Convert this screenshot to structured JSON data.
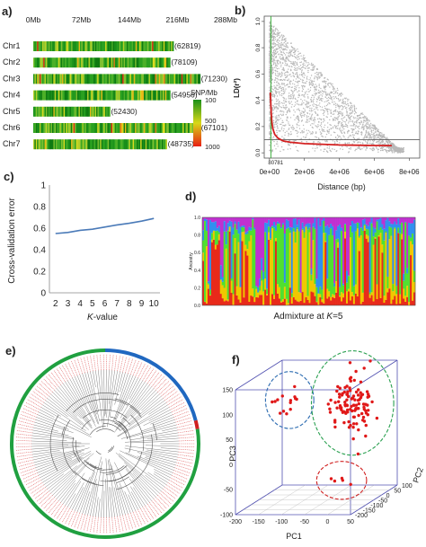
{
  "chart_data": [
    {
      "panel": "a)",
      "type": "heatmap",
      "xticks": [
        "0Mb",
        "72Mb",
        "144Mb",
        "216Mb",
        "288Mb"
      ],
      "xlim": [
        0,
        288
      ],
      "rows": [
        {
          "name": "Chr1",
          "count": "(62819)",
          "length": 210
        },
        {
          "name": "Chr2",
          "count": "(78109)",
          "length": 205
        },
        {
          "name": "Chr3",
          "count": "(71230)",
          "length": 250
        },
        {
          "name": "Chr4",
          "count": "(54956)",
          "length": 205
        },
        {
          "name": "Chr5",
          "count": "(52430)",
          "length": 115
        },
        {
          "name": "Chr6",
          "count": "(67101)",
          "length": 250
        },
        {
          "name": "Chr7",
          "count": "(48735)",
          "length": 200
        }
      ],
      "legend_title": "SNP/Mb",
      "legend_ticks": [
        "100",
        "500",
        "1000"
      ],
      "legend_values": [
        100,
        500,
        1000
      ],
      "colors": {
        "low": "#1a8f1a",
        "mid": "#d8d818",
        "high": "#e81e14"
      }
    },
    {
      "panel": "b)",
      "type": "scatter",
      "ylabel": "LD(r²)",
      "xlabel": "Distance (bp)",
      "xticks": [
        "0e+00",
        "2e+06",
        "4e+06",
        "6e+06",
        "8e+06"
      ],
      "xtick_values": [
        0,
        2000000,
        4000000,
        6000000,
        8000000
      ],
      "yticks": [
        "0.0",
        "0.2",
        "0.4",
        "0.6",
        "0.8",
        "1.0"
      ],
      "ytick_values": [
        0,
        0.2,
        0.4,
        0.6,
        0.8,
        1.0
      ],
      "xlim": [
        -300000,
        8600000
      ],
      "ylim": [
        -0.04,
        1.04
      ],
      "threshold_r2": 0.1,
      "decay_x_label": "80781",
      "decay_x": 80781,
      "decay_curve": {
        "x": [
          50000,
          100000,
          150000,
          200000,
          300000,
          500000,
          800000,
          1200000,
          2000000,
          3000000,
          4000000,
          5000000,
          6000000,
          7000000
        ],
        "y": [
          0.46,
          0.3,
          0.22,
          0.18,
          0.14,
          0.11,
          0.09,
          0.08,
          0.07,
          0.065,
          0.06,
          0.058,
          0.056,
          0.055
        ]
      },
      "colors": {
        "points": "#b8b8b8",
        "curve": "#d42020",
        "decay_line": "#2eaa2e",
        "threshold": "#606060"
      }
    },
    {
      "panel": "c)",
      "type": "line",
      "ylabel": "Cross-validation error",
      "xlabel_prefix": "K",
      "xlabel_suffix": "-value",
      "x": [
        2,
        3,
        4,
        5,
        6,
        7,
        8,
        9,
        10
      ],
      "y": [
        0.55,
        0.56,
        0.58,
        0.59,
        0.61,
        0.63,
        0.645,
        0.665,
        0.69
      ],
      "xticks": [
        "2",
        "3",
        "4",
        "5",
        "6",
        "7",
        "8",
        "9",
        "10"
      ],
      "yticks": [
        "0",
        "0.2",
        "0.4",
        "0.6",
        "0.8",
        "1"
      ],
      "ytick_values": [
        0,
        0.2,
        0.4,
        0.6,
        0.8,
        1
      ],
      "ylim": [
        0,
        1
      ],
      "color": "#4a7ab8"
    },
    {
      "panel": "d)",
      "type": "bar",
      "ylabel": "Ancestry",
      "xlabel_prefix": "Admixture  at ",
      "xlabel_k": "K",
      "xlabel_suffix": "=5",
      "yticks": [
        "0.0",
        "0.2",
        "0.4",
        "0.6",
        "0.8",
        "1.0"
      ],
      "ytick_values": [
        0,
        0.2,
        0.4,
        0.6,
        0.8,
        1.0
      ],
      "ylim": [
        0,
        1
      ],
      "k": 5,
      "n_samples": 120,
      "colors": [
        "#e82a1a",
        "#f0c800",
        "#50e030",
        "#3090f0",
        "#c030d0"
      ]
    },
    {
      "panel": "e)",
      "type": "other",
      "description_kind": "circular phylogenetic tree",
      "group_arcs": [
        {
          "fraction": 0.21,
          "color": "#2068c0"
        },
        {
          "fraction": 0.015,
          "color": "#d02020"
        },
        {
          "fraction": 0.775,
          "color": "#20a040"
        }
      ],
      "leaf_label_color": "#e06060",
      "branch_color": "#808080"
    },
    {
      "panel": "f)",
      "type": "scatter",
      "projection": "3d",
      "xlabel": "PC1",
      "ylabel": "PC2",
      "zlabel": "PC3",
      "pc1_ticks": [
        "-200",
        "-150",
        "-100",
        "-50",
        "0",
        "50"
      ],
      "pc1_values": [
        -200,
        -150,
        -100,
        -50,
        0,
        50
      ],
      "pc2_ticks": [
        "-200",
        "-150",
        "-100",
        "-50",
        "0",
        "50",
        "100"
      ],
      "pc2_values": [
        -200,
        -150,
        -100,
        -50,
        0,
        50,
        100
      ],
      "pc3_ticks": [
        "-100",
        "-50",
        "0",
        "50",
        "100",
        "150"
      ],
      "pc3_values": [
        -100,
        -50,
        0,
        50,
        100,
        150
      ],
      "clusters": [
        {
          "center": [
            -150,
            0,
            90
          ],
          "spread": [
            25,
            15,
            30
          ],
          "n": 14,
          "ring": "#2a6ab0"
        },
        {
          "center": [
            -20,
            20,
            80
          ],
          "spread": [
            40,
            40,
            55
          ],
          "n": 110,
          "ring": "#2aa050"
        },
        {
          "center": [
            -10,
            -80,
            -55
          ],
          "spread": [
            25,
            20,
            20
          ],
          "n": 5,
          "ring": "#d02020"
        }
      ],
      "point_color": "#e01818",
      "box_color": "#5050b0"
    }
  ]
}
